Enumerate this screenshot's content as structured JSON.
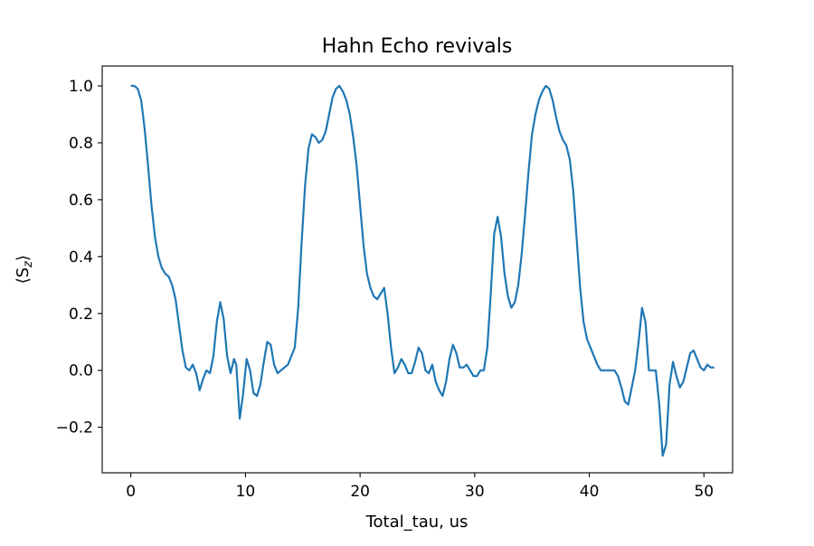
{
  "chart_data": {
    "type": "line",
    "title": "Hahn Echo revivals",
    "xlabel": "Total_tau, us",
    "ylabel": "⟨S",
    "ylabel_sub": "z",
    "ylabel_close": "⟩",
    "xlim": [
      -2.5,
      52.5
    ],
    "ylim": [
      -0.36,
      1.07
    ],
    "xticks": [
      0,
      10,
      20,
      30,
      40,
      50
    ],
    "xtick_labels": [
      "0",
      "10",
      "20",
      "30",
      "40",
      "50"
    ],
    "yticks": [
      -0.2,
      0.0,
      0.2,
      0.4,
      0.6,
      0.8,
      1.0
    ],
    "ytick_labels": [
      "−0.2",
      "0.0",
      "0.2",
      "0.4",
      "0.6",
      "0.8",
      "1.0"
    ],
    "grid": false,
    "legend": "none",
    "series": [
      {
        "color": "#1f77b4",
        "points": [
          [
            0.0,
            1.0
          ],
          [
            0.3,
            1.0
          ],
          [
            0.6,
            0.99
          ],
          [
            0.9,
            0.95
          ],
          [
            1.2,
            0.85
          ],
          [
            1.5,
            0.72
          ],
          [
            1.8,
            0.58
          ],
          [
            2.1,
            0.47
          ],
          [
            2.4,
            0.4
          ],
          [
            2.7,
            0.36
          ],
          [
            3.0,
            0.34
          ],
          [
            3.3,
            0.33
          ],
          [
            3.6,
            0.3
          ],
          [
            3.9,
            0.25
          ],
          [
            4.2,
            0.16
          ],
          [
            4.5,
            0.07
          ],
          [
            4.8,
            0.01
          ],
          [
            5.1,
            0.0
          ],
          [
            5.4,
            0.02
          ],
          [
            5.7,
            -0.01
          ],
          [
            6.0,
            -0.07
          ],
          [
            6.3,
            -0.03
          ],
          [
            6.6,
            0.0
          ],
          [
            6.9,
            -0.01
          ],
          [
            7.2,
            0.05
          ],
          [
            7.5,
            0.17
          ],
          [
            7.8,
            0.24
          ],
          [
            8.1,
            0.18
          ],
          [
            8.4,
            0.05
          ],
          [
            8.7,
            -0.01
          ],
          [
            9.0,
            0.04
          ],
          [
            9.2,
            0.02
          ],
          [
            9.5,
            -0.17
          ],
          [
            9.8,
            -0.08
          ],
          [
            10.1,
            0.04
          ],
          [
            10.4,
            0.0
          ],
          [
            10.7,
            -0.08
          ],
          [
            11.0,
            -0.09
          ],
          [
            11.3,
            -0.05
          ],
          [
            11.6,
            0.03
          ],
          [
            11.9,
            0.1
          ],
          [
            12.2,
            0.09
          ],
          [
            12.5,
            0.02
          ],
          [
            12.8,
            -0.01
          ],
          [
            13.1,
            0.0
          ],
          [
            13.4,
            0.01
          ],
          [
            13.7,
            0.02
          ],
          [
            14.0,
            0.05
          ],
          [
            14.3,
            0.08
          ],
          [
            14.6,
            0.22
          ],
          [
            14.9,
            0.45
          ],
          [
            15.2,
            0.65
          ],
          [
            15.5,
            0.78
          ],
          [
            15.8,
            0.83
          ],
          [
            16.1,
            0.82
          ],
          [
            16.4,
            0.8
          ],
          [
            16.7,
            0.81
          ],
          [
            17.0,
            0.84
          ],
          [
            17.3,
            0.9
          ],
          [
            17.6,
            0.96
          ],
          [
            17.9,
            0.99
          ],
          [
            18.2,
            1.0
          ],
          [
            18.5,
            0.98
          ],
          [
            18.8,
            0.95
          ],
          [
            19.1,
            0.9
          ],
          [
            19.4,
            0.82
          ],
          [
            19.7,
            0.72
          ],
          [
            20.0,
            0.58
          ],
          [
            20.3,
            0.44
          ],
          [
            20.6,
            0.34
          ],
          [
            20.9,
            0.29
          ],
          [
            21.2,
            0.26
          ],
          [
            21.5,
            0.25
          ],
          [
            21.8,
            0.27
          ],
          [
            22.1,
            0.29
          ],
          [
            22.4,
            0.2
          ],
          [
            22.7,
            0.08
          ],
          [
            23.0,
            -0.01
          ],
          [
            23.3,
            0.01
          ],
          [
            23.6,
            0.04
          ],
          [
            23.9,
            0.02
          ],
          [
            24.2,
            -0.01
          ],
          [
            24.5,
            -0.01
          ],
          [
            24.8,
            0.03
          ],
          [
            25.1,
            0.08
          ],
          [
            25.4,
            0.06
          ],
          [
            25.7,
            0.0
          ],
          [
            26.0,
            -0.01
          ],
          [
            26.3,
            0.02
          ],
          [
            26.6,
            -0.04
          ],
          [
            26.9,
            -0.07
          ],
          [
            27.2,
            -0.09
          ],
          [
            27.5,
            -0.04
          ],
          [
            27.8,
            0.04
          ],
          [
            28.1,
            0.09
          ],
          [
            28.4,
            0.06
          ],
          [
            28.7,
            0.01
          ],
          [
            29.0,
            0.01
          ],
          [
            29.3,
            0.02
          ],
          [
            29.6,
            0.0
          ],
          [
            29.9,
            -0.02
          ],
          [
            30.2,
            -0.02
          ],
          [
            30.5,
            0.0
          ],
          [
            30.8,
            0.0
          ],
          [
            31.1,
            0.08
          ],
          [
            31.4,
            0.27
          ],
          [
            31.7,
            0.48
          ],
          [
            32.0,
            0.54
          ],
          [
            32.3,
            0.47
          ],
          [
            32.6,
            0.34
          ],
          [
            32.9,
            0.26
          ],
          [
            33.2,
            0.22
          ],
          [
            33.5,
            0.24
          ],
          [
            33.8,
            0.3
          ],
          [
            34.1,
            0.41
          ],
          [
            34.4,
            0.55
          ],
          [
            34.7,
            0.7
          ],
          [
            35.0,
            0.83
          ],
          [
            35.3,
            0.9
          ],
          [
            35.6,
            0.95
          ],
          [
            35.9,
            0.98
          ],
          [
            36.2,
            1.0
          ],
          [
            36.5,
            0.99
          ],
          [
            36.8,
            0.95
          ],
          [
            37.1,
            0.89
          ],
          [
            37.4,
            0.84
          ],
          [
            37.7,
            0.81
          ],
          [
            38.0,
            0.79
          ],
          [
            38.3,
            0.74
          ],
          [
            38.6,
            0.63
          ],
          [
            38.9,
            0.46
          ],
          [
            39.2,
            0.29
          ],
          [
            39.5,
            0.17
          ],
          [
            39.8,
            0.11
          ],
          [
            40.1,
            0.08
          ],
          [
            40.4,
            0.05
          ],
          [
            40.7,
            0.02
          ],
          [
            41.0,
            0.0
          ],
          [
            41.3,
            0.0
          ],
          [
            41.6,
            0.0
          ],
          [
            41.9,
            0.0
          ],
          [
            42.2,
            0.0
          ],
          [
            42.5,
            -0.02
          ],
          [
            42.8,
            -0.06
          ],
          [
            43.1,
            -0.11
          ],
          [
            43.4,
            -0.12
          ],
          [
            43.7,
            -0.06
          ],
          [
            44.0,
            0.0
          ],
          [
            44.3,
            0.1
          ],
          [
            44.6,
            0.22
          ],
          [
            44.9,
            0.17
          ],
          [
            45.2,
            0.0
          ],
          [
            45.5,
            0.0
          ],
          [
            45.8,
            0.0
          ],
          [
            46.1,
            -0.12
          ],
          [
            46.4,
            -0.3
          ],
          [
            46.7,
            -0.26
          ],
          [
            47.0,
            -0.05
          ],
          [
            47.3,
            0.03
          ],
          [
            47.6,
            -0.02
          ],
          [
            47.9,
            -0.06
          ],
          [
            48.2,
            -0.04
          ],
          [
            48.5,
            0.01
          ],
          [
            48.8,
            0.06
          ],
          [
            49.1,
            0.07
          ],
          [
            49.4,
            0.04
          ],
          [
            49.7,
            0.01
          ],
          [
            50.0,
            0.0
          ],
          [
            50.3,
            0.02
          ],
          [
            50.6,
            0.01
          ],
          [
            50.9,
            0.01
          ]
        ]
      }
    ]
  }
}
